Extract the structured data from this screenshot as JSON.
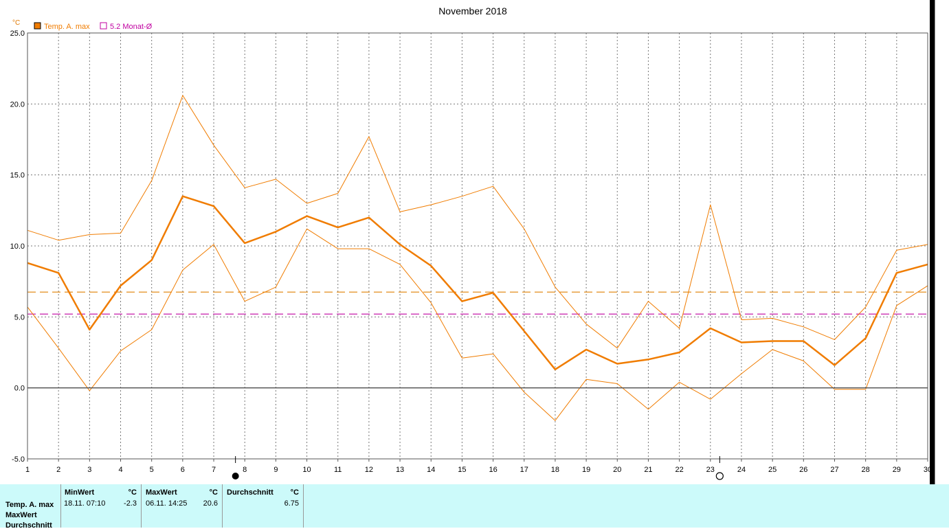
{
  "chart_data": {
    "type": "line",
    "title": "November 2018",
    "unit": "°C",
    "x": [
      1,
      2,
      3,
      4,
      5,
      6,
      7,
      8,
      9,
      10,
      11,
      12,
      13,
      14,
      15,
      16,
      17,
      18,
      19,
      20,
      21,
      22,
      23,
      24,
      25,
      26,
      27,
      28,
      29,
      30
    ],
    "ylim": [
      -5,
      25
    ],
    "yticks": [
      "25.0",
      "20.0",
      "15.0",
      "10.0",
      "5.0",
      "0.0",
      "-5.0"
    ],
    "grid": true,
    "legend_position": "top-left",
    "legend": [
      {
        "label": "Temp. A. max",
        "color": "#f07c00",
        "marker": "filled-square"
      },
      {
        "label": "5.2 Monat-Ø",
        "color": "#c000a0",
        "marker": "open-square"
      }
    ],
    "series": [
      {
        "name": "Temp. A. max",
        "role": "mean",
        "color": "#f07c00",
        "values": [
          8.8,
          8.1,
          4.1,
          7.2,
          9.0,
          13.5,
          12.8,
          10.2,
          11.0,
          12.1,
          11.3,
          12.0,
          10.1,
          8.6,
          6.1,
          6.7,
          4.0,
          1.3,
          2.7,
          1.7,
          2.0,
          2.5,
          4.2,
          3.2,
          3.3,
          3.3,
          1.6,
          3.5,
          8.1,
          8.7
        ]
      },
      {
        "role": "upper",
        "color": "#f07c00",
        "values": [
          11.1,
          10.4,
          10.8,
          10.9,
          14.6,
          20.6,
          17.1,
          14.1,
          14.7,
          13.0,
          13.7,
          17.7,
          12.4,
          12.9,
          13.5,
          14.2,
          11.2,
          7.1,
          4.5,
          2.8,
          6.1,
          4.2,
          12.9,
          4.8,
          4.9,
          4.3,
          3.4,
          5.7,
          9.7,
          10.1
        ]
      },
      {
        "role": "lower",
        "color": "#f07c00",
        "values": [
          5.7,
          2.8,
          -0.2,
          2.6,
          4.1,
          8.3,
          10.1,
          6.1,
          7.1,
          11.2,
          9.8,
          9.8,
          8.7,
          6.0,
          2.1,
          2.4,
          -0.3,
          -2.3,
          0.6,
          0.3,
          -1.5,
          0.4,
          -0.8,
          1.0,
          2.7,
          1.9,
          -0.1,
          -0.1,
          5.8,
          7.2
        ]
      }
    ],
    "reference_lines": [
      {
        "value": 6.75,
        "color": "#e08000",
        "style": "dashed"
      },
      {
        "value": 5.2,
        "color": "#c000a0",
        "style": "dashed"
      }
    ],
    "moon_phases": [
      {
        "x": 7.7,
        "phase": "new-moon"
      },
      {
        "x": 23.3,
        "phase": "full-moon"
      }
    ]
  },
  "stats": {
    "row_labels": [
      "Temp. A. max",
      "MaxWert",
      "Durchschnitt"
    ],
    "min": {
      "header": "MinWert",
      "unit": "°C",
      "date": "18.11.  07:10",
      "value": "-2.3"
    },
    "max": {
      "header": "MaxWert",
      "unit": "°C",
      "date": "06.11.  14:25",
      "value": "20.6"
    },
    "avg": {
      "header": "Durchschnitt",
      "unit": "°C",
      "value": "6.75"
    }
  }
}
